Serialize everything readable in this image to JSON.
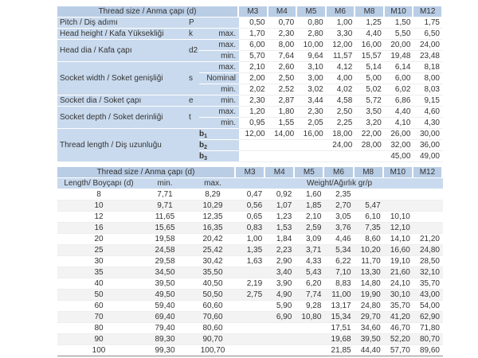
{
  "columns": [
    "M3",
    "M4",
    "M5",
    "M6",
    "M8",
    "M10",
    "M12"
  ],
  "dimensions": {
    "header": "Thread size / Anma çapı (d)",
    "groups": [
      {
        "label": "Pitch / Diş adımı",
        "symbol": "P",
        "rows": [
          {
            "q": "",
            "v": [
              "0,50",
              "0,70",
              "0,80",
              "1,00",
              "1,25",
              "1,50",
              "1,75"
            ]
          }
        ]
      },
      {
        "label": "Head height / Kafa Yüksekliği",
        "symbol": "k",
        "rows": [
          {
            "q": "max.",
            "v": [
              "1,70",
              "2,30",
              "2,80",
              "3,30",
              "4,40",
              "5,50",
              "6,50"
            ]
          }
        ]
      },
      {
        "label": "Head dia / Kafa çapı",
        "symbol": "d2",
        "rows": [
          {
            "q": "max.",
            "v": [
              "6,00",
              "8,00",
              "10,00",
              "12,00",
              "16,00",
              "20,00",
              "24,00"
            ]
          },
          {
            "q": "min.",
            "v": [
              "5,70",
              "7,64",
              "9,64",
              "11,57",
              "15,57",
              "19,48",
              "23,48"
            ]
          }
        ]
      },
      {
        "label": "Socket width / Soket genişliği",
        "symbol": "s",
        "rows": [
          {
            "q": "max.",
            "v": [
              "2,10",
              "2,60",
              "3,10",
              "4,12",
              "5,14",
              "6,14",
              "8,18"
            ]
          },
          {
            "q": "Nominal",
            "v": [
              "2,00",
              "2,50",
              "3,00",
              "4,00",
              "5,00",
              "6,00",
              "8,00"
            ]
          },
          {
            "q": "min.",
            "v": [
              "2,02",
              "2,52",
              "3,02",
              "4,02",
              "5,02",
              "6,02",
              "8,03"
            ]
          }
        ]
      },
      {
        "label": "Socket dia / Soket çapı",
        "symbol": "e",
        "rows": [
          {
            "q": "min.",
            "v": [
              "2,30",
              "2,87",
              "3,44",
              "4,58",
              "5,72",
              "6,86",
              "9,15"
            ]
          }
        ]
      },
      {
        "label": "Socket depth / Soket derinliği",
        "symbol": "t",
        "rows": [
          {
            "q": "max.",
            "v": [
              "1,20",
              "1,80",
              "2,30",
              "2,50",
              "3,50",
              "4,40",
              "4,60"
            ]
          },
          {
            "q": "min.",
            "v": [
              "0,95",
              "1,55",
              "2,05",
              "2,25",
              "3,20",
              "4,10",
              "4,30"
            ]
          }
        ]
      },
      {
        "label": "Thread length / Diş uzunluğu",
        "symbol": "",
        "rows": [
          {
            "q": "b1",
            "v": [
              "12,00",
              "14,00",
              "16,00",
              "18,00",
              "22,00",
              "26,00",
              "30,00"
            ]
          },
          {
            "q": "b2",
            "v": [
              "",
              "",
              "",
              "24,00",
              "28,00",
              "32,00",
              "36,00"
            ]
          },
          {
            "q": "b3",
            "v": [
              "",
              "",
              "",
              "",
              "",
              "45,00",
              "49,00"
            ]
          }
        ]
      }
    ]
  },
  "weights": {
    "header": "Thread size / Anma çapı (d)",
    "sub": [
      "Length/ Boyçapı (d)",
      "min.",
      "max."
    ],
    "weight_label": "Weight/Ağırlık gr/p",
    "rows": [
      [
        "8",
        "7,71",
        "8,29",
        "0,47",
        "0,92",
        "1,60",
        "2,35",
        "",
        "",
        ""
      ],
      [
        "10",
        "9,71",
        "10,29",
        "0,56",
        "1,07",
        "1,85",
        "2,70",
        "5,47",
        "",
        ""
      ],
      [
        "12",
        "11,65",
        "12,35",
        "0,65",
        "1,23",
        "2,10",
        "3,05",
        "6,10",
        "10,10",
        ""
      ],
      [
        "16",
        "15,65",
        "16,35",
        "0,83",
        "1,53",
        "2,59",
        "3,76",
        "7,35",
        "12,10",
        ""
      ],
      [
        "20",
        "19,58",
        "20,42",
        "1,00",
        "1,84",
        "3,09",
        "4,46",
        "8,60",
        "14,10",
        "21,20"
      ],
      [
        "25",
        "24,58",
        "25,42",
        "1,35",
        "2,23",
        "3,71",
        "5,34",
        "10,20",
        "16,60",
        "24,80"
      ],
      [
        "30",
        "29,58",
        "30,42",
        "1,63",
        "2,90",
        "4,33",
        "6,22",
        "11,70",
        "19,10",
        "28,50"
      ],
      [
        "35",
        "34,50",
        "35,50",
        "",
        "3,40",
        "5,43",
        "7,10",
        "13,30",
        "21,60",
        "32,10"
      ],
      [
        "40",
        "39,50",
        "40,50",
        "2,19",
        "3,90",
        "6,20",
        "8,83",
        "14,80",
        "24,10",
        "35,70"
      ],
      [
        "50",
        "49,50",
        "50,50",
        "2,75",
        "4,90",
        "7,74",
        "11,00",
        "19,90",
        "30,10",
        "43,00"
      ],
      [
        "60",
        "59,40",
        "60,60",
        "",
        "5,90",
        "9,28",
        "13,17",
        "24,80",
        "35,70",
        "54,00"
      ],
      [
        "70",
        "69,40",
        "70,60",
        "",
        "6,90",
        "10,80",
        "15,34",
        "29,70",
        "41,20",
        "62,90"
      ],
      [
        "80",
        "79,40",
        "80,60",
        "",
        "",
        "",
        "17,51",
        "34,60",
        "46,70",
        "71,80"
      ],
      [
        "90",
        "89,30",
        "90,70",
        "",
        "",
        "",
        "19,68",
        "39,50",
        "52,20",
        "80,70"
      ],
      [
        "100",
        "99,30",
        "100,70",
        "",
        "",
        "",
        "21,85",
        "44,40",
        "57,70",
        "89,60"
      ]
    ]
  }
}
